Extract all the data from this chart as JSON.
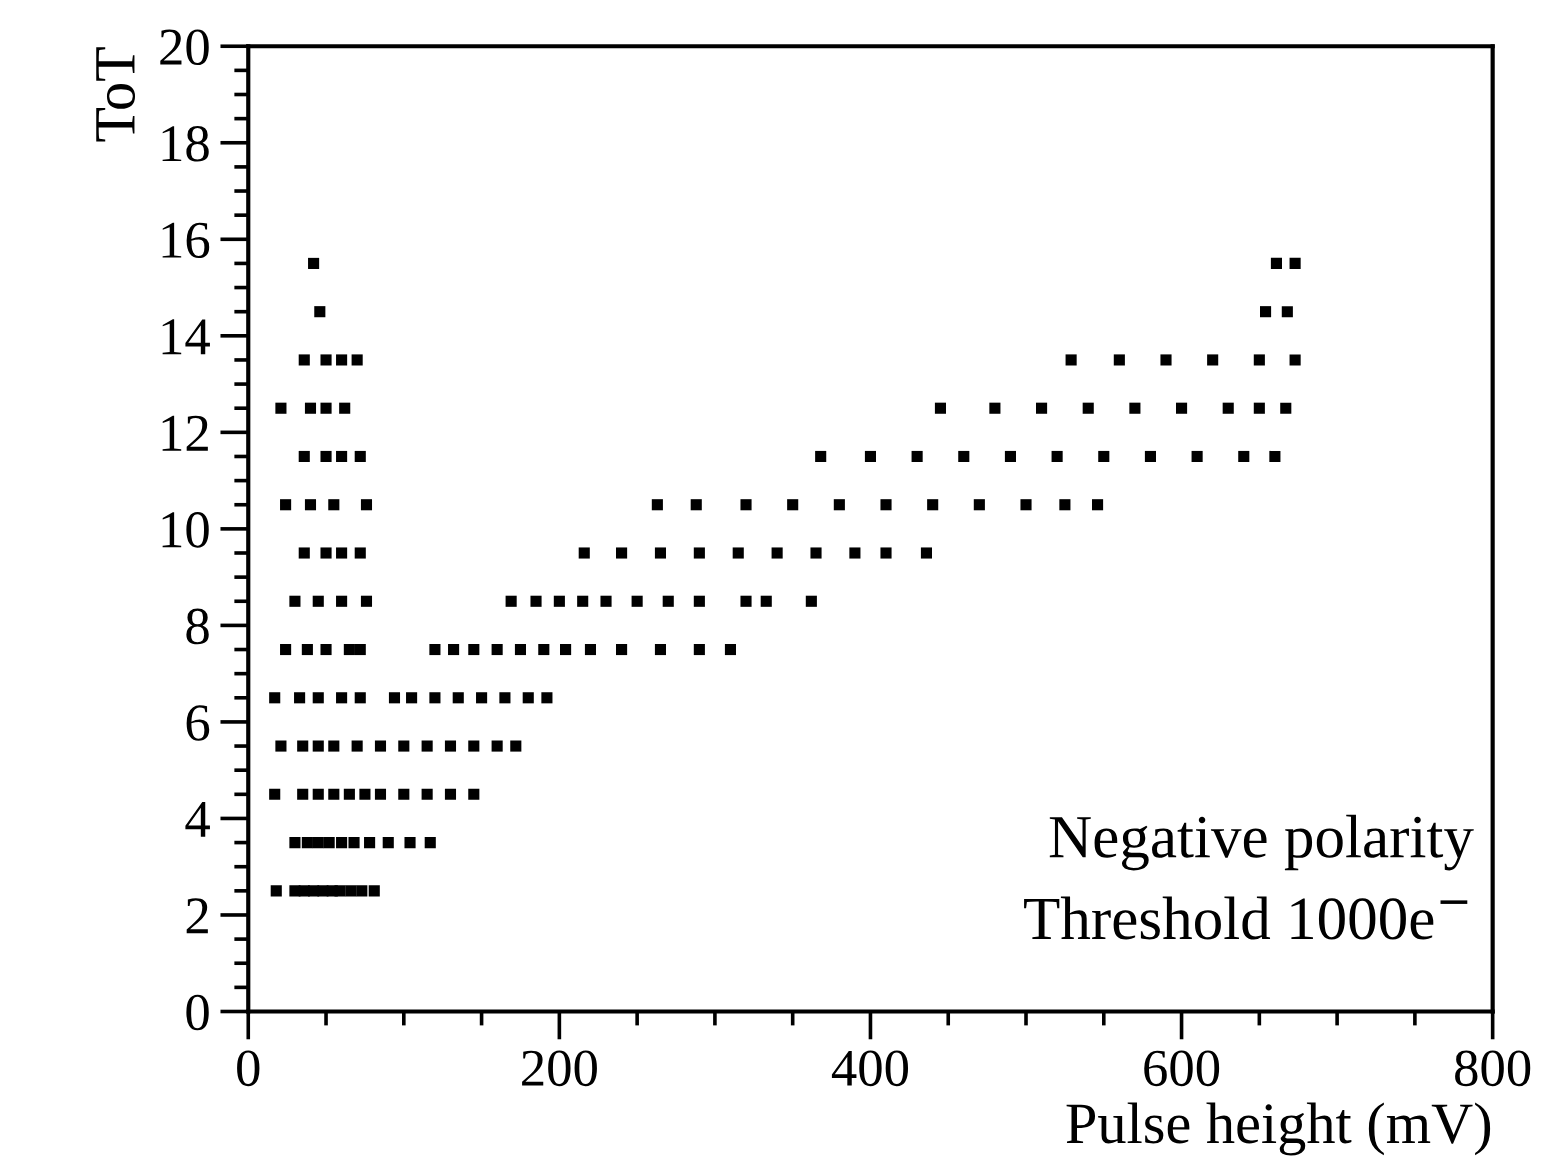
{
  "chart_data": {
    "type": "scatter",
    "xlabel": "Pulse height (mV)",
    "ylabel": "ToT",
    "annotations": [
      "Negative polarity",
      "Threshold 1000e$^{−}$"
    ],
    "marker": "square",
    "grid": false,
    "xlim": [
      0,
      800
    ],
    "ylim": [
      0,
      20
    ],
    "xticks": [
      0,
      {
        "value": 50,
        "label": null
      },
      {
        "value": 100,
        "label": null
      },
      {
        "value": 150,
        "label": null
      },
      200,
      {
        "value": 250,
        "label": null
      },
      {
        "value": 300,
        "label": null
      },
      {
        "value": 350,
        "label": null
      },
      400,
      {
        "value": 450,
        "label": null
      },
      {
        "value": 500,
        "label": null
      },
      {
        "value": 550,
        "label": null
      },
      600,
      {
        "value": 650,
        "label": null
      },
      {
        "value": 700,
        "label": null
      },
      {
        "value": 750,
        "label": null
      },
      800
    ],
    "yticks": [
      0,
      {
        "value": 0.5,
        "label": null
      },
      {
        "value": 1,
        "label": null
      },
      {
        "value": 1.5,
        "label": null
      },
      2,
      {
        "value": 2.5,
        "label": null
      },
      {
        "value": 3,
        "label": null
      },
      {
        "value": 3.5,
        "label": null
      },
      4,
      {
        "value": 4.5,
        "label": null
      },
      {
        "value": 5,
        "label": null
      },
      {
        "value": 5.5,
        "label": null
      },
      6,
      {
        "value": 6.5,
        "label": null
      },
      {
        "value": 7,
        "label": null
      },
      {
        "value": 7.5,
        "label": null
      },
      8,
      {
        "value": 8.5,
        "label": null
      },
      {
        "value": 9,
        "label": null
      },
      {
        "value": 9.5,
        "label": null
      },
      10,
      {
        "value": 10.5,
        "label": null
      },
      {
        "value": 11,
        "label": null
      },
      {
        "value": 11.5,
        "label": null
      },
      12,
      {
        "value": 12.5,
        "label": null
      },
      {
        "value": 13,
        "label": null
      },
      {
        "value": 13.5,
        "label": null
      },
      14,
      {
        "value": 14.5,
        "label": null
      },
      {
        "value": 15,
        "label": null
      },
      {
        "value": 15.5,
        "label": null
      },
      16,
      {
        "value": 16.5,
        "label": null
      },
      {
        "value": 17,
        "label": null
      },
      {
        "value": 17.5,
        "label": null
      },
      18,
      {
        "value": 18.5,
        "label": null
      },
      {
        "value": 19,
        "label": null
      },
      {
        "value": 19.5,
        "label": null
      },
      20
    ],
    "series": [
      {
        "color": "#000000",
        "x": [
          18,
          30,
          36,
          42,
          48,
          54,
          59,
          66,
          73,
          81,
          30,
          38,
          45,
          52,
          60,
          68,
          78,
          90,
          104,
          117,
          17,
          35,
          45,
          55,
          65,
          75,
          85,
          100,
          115,
          130,
          145,
          21,
          35,
          45,
          55,
          70,
          85,
          100,
          115,
          130,
          145,
          160,
          172,
          17,
          33,
          45,
          60,
          72,
          94,
          105,
          120,
          135,
          150,
          165,
          180,
          192,
          24,
          38,
          50,
          65,
          72,
          120,
          132,
          145,
          160,
          175,
          190,
          204,
          220,
          240,
          265,
          290,
          310,
          30,
          45,
          60,
          76,
          169,
          185,
          200,
          215,
          230,
          250,
          270,
          290,
          320,
          333,
          362,
          36,
          50,
          60,
          72,
          216,
          240,
          265,
          290,
          315,
          340,
          365,
          390,
          410,
          436,
          24,
          40,
          55,
          76,
          263,
          288,
          320,
          350,
          380,
          410,
          440,
          470,
          500,
          525,
          546,
          36,
          50,
          60,
          72,
          368,
          400,
          430,
          460,
          490,
          520,
          550,
          580,
          610,
          640,
          660,
          21,
          40,
          50,
          62,
          445,
          480,
          510,
          540,
          570,
          600,
          630,
          650,
          667,
          36,
          50,
          60,
          70,
          529,
          560,
          590,
          620,
          650,
          673,
          46,
          654,
          668,
          42,
          661,
          673
        ],
        "values": [
          2.5,
          2.5,
          2.5,
          2.5,
          2.5,
          2.5,
          2.5,
          2.5,
          2.5,
          2.5,
          3.5,
          3.5,
          3.5,
          3.5,
          3.5,
          3.5,
          3.5,
          3.5,
          3.5,
          3.5,
          4.5,
          4.5,
          4.5,
          4.5,
          4.5,
          4.5,
          4.5,
          4.5,
          4.5,
          4.5,
          4.5,
          5.5,
          5.5,
          5.5,
          5.5,
          5.5,
          5.5,
          5.5,
          5.5,
          5.5,
          5.5,
          5.5,
          5.5,
          6.5,
          6.5,
          6.5,
          6.5,
          6.5,
          6.5,
          6.5,
          6.5,
          6.5,
          6.5,
          6.5,
          6.5,
          6.5,
          7.5,
          7.5,
          7.5,
          7.5,
          7.5,
          7.5,
          7.5,
          7.5,
          7.5,
          7.5,
          7.5,
          7.5,
          7.5,
          7.5,
          7.5,
          7.5,
          7.5,
          8.5,
          8.5,
          8.5,
          8.5,
          8.5,
          8.5,
          8.5,
          8.5,
          8.5,
          8.5,
          8.5,
          8.5,
          8.5,
          8.5,
          8.5,
          9.5,
          9.5,
          9.5,
          9.5,
          9.5,
          9.5,
          9.5,
          9.5,
          9.5,
          9.5,
          9.5,
          9.5,
          9.5,
          9.5,
          10.5,
          10.5,
          10.5,
          10.5,
          10.5,
          10.5,
          10.5,
          10.5,
          10.5,
          10.5,
          10.5,
          10.5,
          10.5,
          10.5,
          10.5,
          11.5,
          11.5,
          11.5,
          11.5,
          11.5,
          11.5,
          11.5,
          11.5,
          11.5,
          11.5,
          11.5,
          11.5,
          11.5,
          11.5,
          11.5,
          12.5,
          12.5,
          12.5,
          12.5,
          12.5,
          12.5,
          12.5,
          12.5,
          12.5,
          12.5,
          12.5,
          12.5,
          12.5,
          13.5,
          13.5,
          13.5,
          13.5,
          13.5,
          13.5,
          13.5,
          13.5,
          13.5,
          13.5,
          14.5,
          14.5,
          14.5,
          15.5,
          15.5,
          15.5
        ]
      }
    ]
  }
}
